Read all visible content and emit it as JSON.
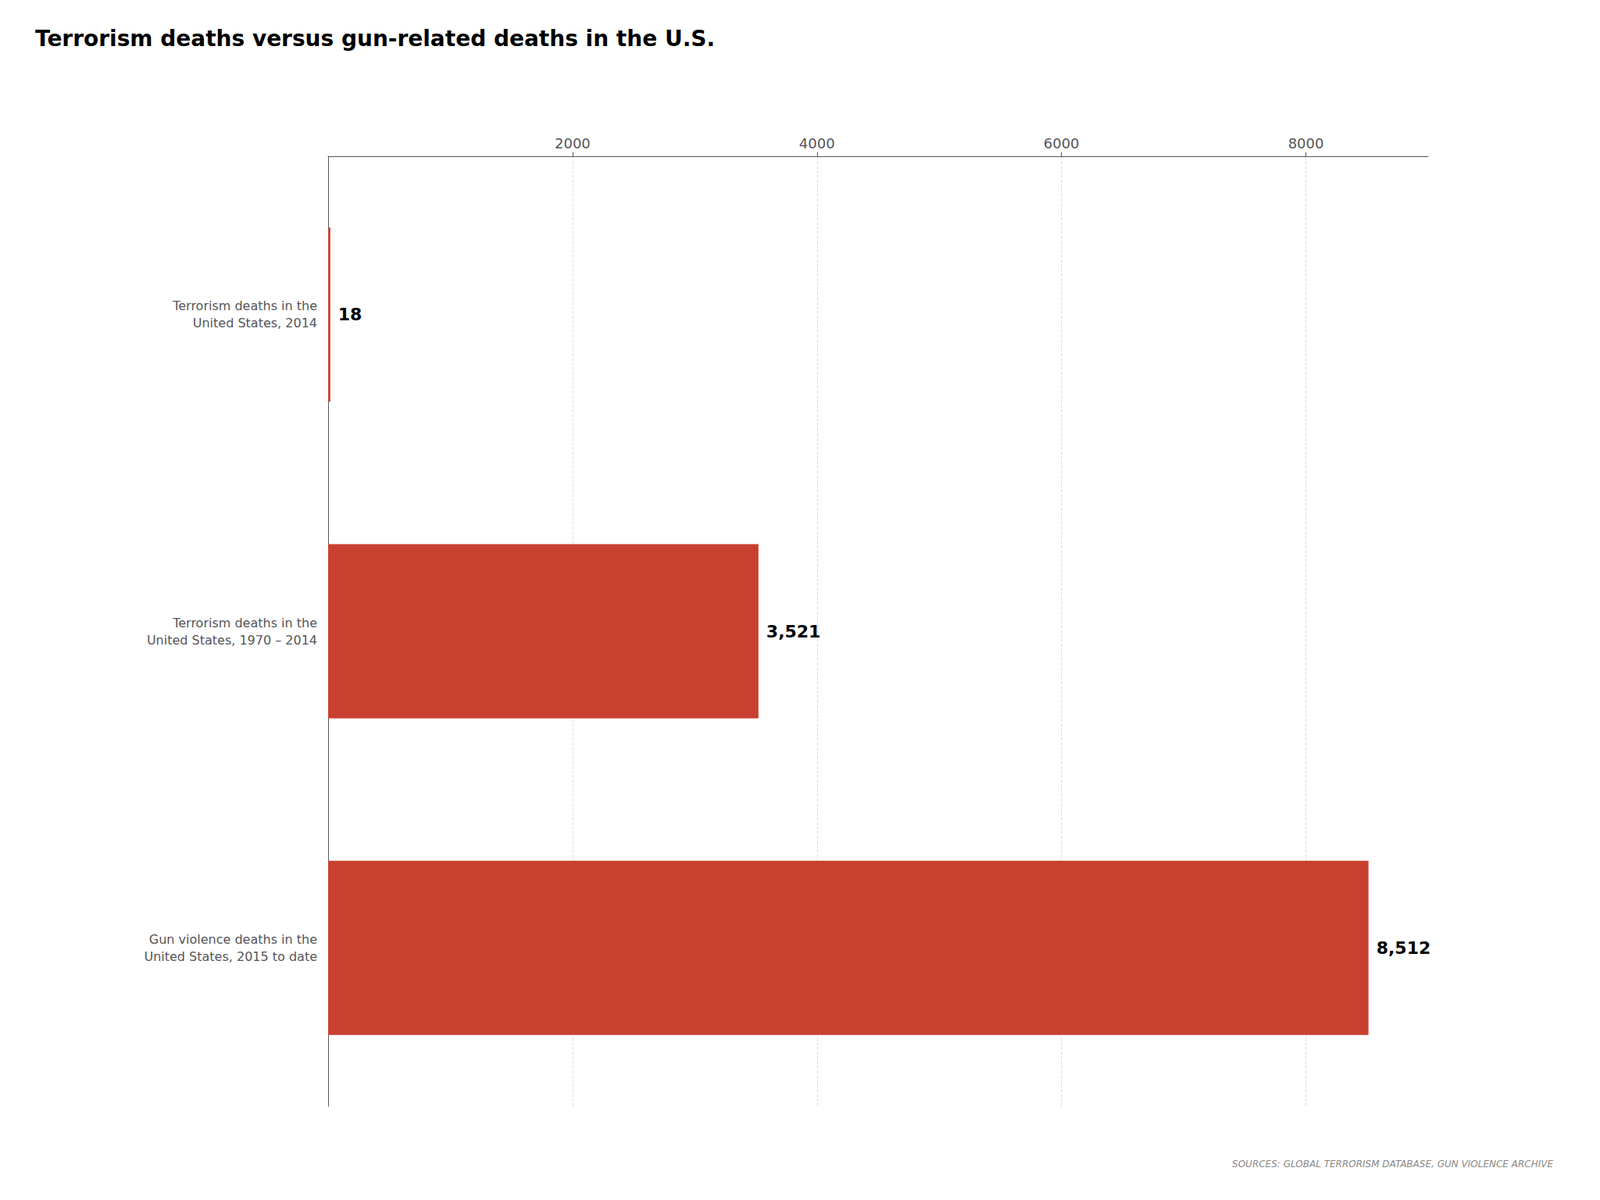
{
  "chart_data": {
    "type": "bar",
    "orientation": "horizontal",
    "title": "Terrorism deaths versus gun-related deaths in the U.S.",
    "categories": [
      "Terrorism deaths in the\nUnited States, 2014",
      "Terrorism deaths in the\nUnited States, 1970 – 2014",
      "Gun violence deaths in the\nUnited States, 2015 to date"
    ],
    "values": [
      18,
      3521,
      8512
    ],
    "value_labels": [
      "18",
      "3,521",
      "8,512"
    ],
    "data_labels": true,
    "color": "#C94030",
    "xlim": [
      0,
      9000
    ],
    "xticks": [
      2000,
      4000,
      6000,
      8000
    ],
    "grid": true,
    "annotations": [
      "SOURCES: GLOBAL TERRORISM DATABASE, GUN VIOLENCE ARCHIVE"
    ]
  }
}
